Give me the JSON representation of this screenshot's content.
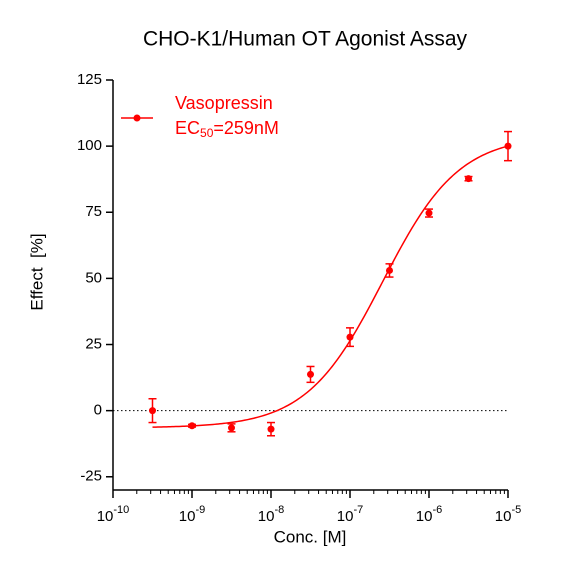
{
  "chart_data": {
    "type": "dose-response",
    "title": "CHO-K1/Human OT Agonist Assay",
    "x_label": "Conc. [M]",
    "y_label": "Effect  [%]",
    "xscale": "log",
    "xlim": [
      1e-10,
      1e-05
    ],
    "xticks": [
      {
        "value": 1e-10,
        "label": "10",
        "exponent": "-10"
      },
      {
        "value": 1e-09,
        "label": "10",
        "exponent": "-9"
      },
      {
        "value": 1e-08,
        "label": "10",
        "exponent": "-8"
      },
      {
        "value": 1e-07,
        "label": "10",
        "exponent": "-7"
      },
      {
        "value": 1e-06,
        "label": "10",
        "exponent": "-6"
      },
      {
        "value": 1e-05,
        "label": "10",
        "exponent": "-5"
      }
    ],
    "ylim": [
      -30,
      125
    ],
    "yticks": [
      -25,
      0,
      25,
      50,
      75,
      100,
      125
    ],
    "baseline": 0,
    "legend": "top-left",
    "series": [
      {
        "name": "Vasopressin",
        "color": "#ff0000",
        "x": [
          3.162e-10,
          1e-09,
          3.162e-09,
          1e-08,
          3.162e-08,
          1e-07,
          3.162e-07,
          1e-06,
          3.162e-06,
          1e-05
        ],
        "values": [
          0,
          -5.7,
          -6.5,
          -7,
          13.7,
          27.8,
          53,
          74.7,
          87.7,
          100
        ],
        "errors": [
          4.5,
          0.5,
          1.5,
          2.5,
          3,
          3.5,
          2.5,
          1.5,
          0.8,
          5.5
        ],
        "fit": {
          "bottom": -6.5,
          "top": 104,
          "ec50": 2.59e-07,
          "hill": 0.9
        },
        "fit_label": {
          "text": "EC",
          "subscript": "50",
          "suffix": "=259nM"
        }
      }
    ]
  }
}
